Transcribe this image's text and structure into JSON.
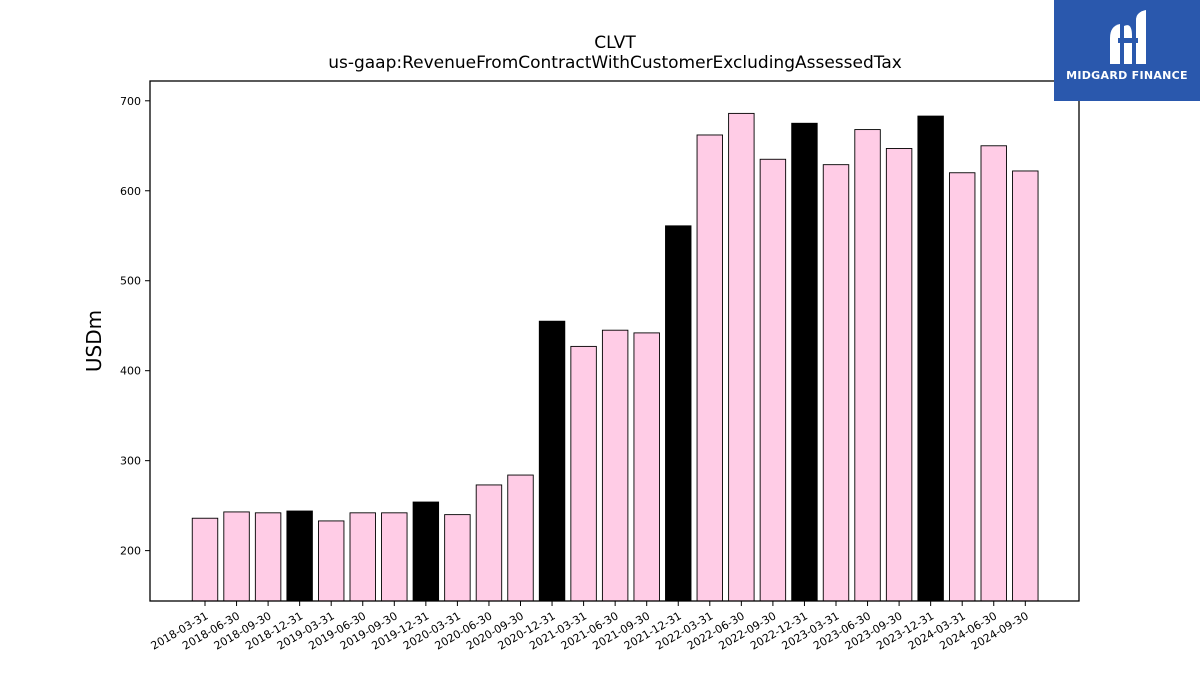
{
  "chart_data": {
    "type": "bar",
    "title": "CLVT",
    "subtitle": "us-gaap:RevenueFromContractWithCustomerExcludingAssessedTax",
    "xlabel": "",
    "ylabel": "USDm",
    "ylim": [
      144,
      722
    ],
    "yticks": [
      200,
      300,
      400,
      500,
      600,
      700
    ],
    "grid": false,
    "categories": [
      "2018-03-31",
      "2018-06-30",
      "2018-09-30",
      "2018-12-31",
      "2019-03-31",
      "2019-06-30",
      "2019-09-30",
      "2019-12-31",
      "2020-03-31",
      "2020-06-30",
      "2020-09-30",
      "2020-12-31",
      "2021-03-31",
      "2021-06-30",
      "2021-09-30",
      "2021-12-31",
      "2022-03-31",
      "2022-06-30",
      "2022-09-30",
      "2022-12-31",
      "2023-03-31",
      "2023-06-30",
      "2023-09-30",
      "2023-12-31",
      "2024-03-31",
      "2024-06-30",
      "2024-09-30"
    ],
    "values": [
      236,
      243,
      242,
      244,
      233,
      242,
      242,
      254,
      240,
      273,
      284,
      455,
      427,
      445,
      442,
      561,
      662,
      686,
      635,
      675,
      629,
      668,
      647,
      683,
      620,
      650,
      622
    ],
    "colors": {
      "quarter": "#ffcce6",
      "year_end": "#000000",
      "edge": "#000000"
    }
  },
  "logo": {
    "text": "MIDGARD FINANCE",
    "bg": "#2a58ad"
  }
}
